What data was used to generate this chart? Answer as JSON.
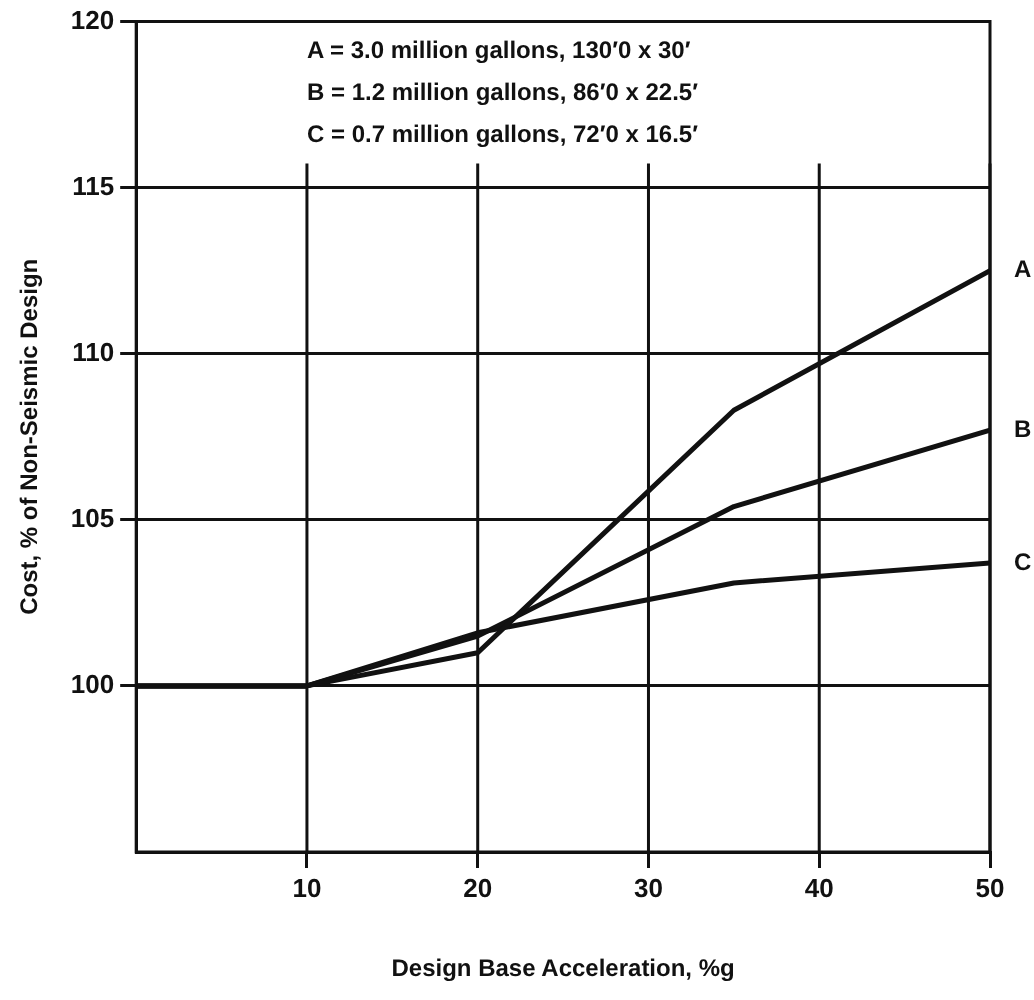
{
  "chart_data": {
    "type": "line",
    "xlabel": "Design Base Acceleration, %g",
    "ylabel": "Cost, % of Non-Seismic Design",
    "x": [
      0,
      10,
      20,
      35,
      50
    ],
    "series": [
      {
        "name": "A",
        "color": "#111111",
        "values": [
          100,
          100,
          101,
          108.3,
          112.5
        ]
      },
      {
        "name": "B",
        "color": "#111111",
        "values": [
          100,
          100,
          101.5,
          105.4,
          107.7
        ]
      },
      {
        "name": "C",
        "color": "#111111",
        "values": [
          100,
          100,
          101.6,
          103.1,
          103.7
        ]
      }
    ],
    "xlim": [
      0,
      50
    ],
    "xticks": [
      10,
      20,
      30,
      40,
      50
    ],
    "ylim": [
      95,
      120
    ],
    "yticks": [
      100,
      105,
      110,
      115,
      120
    ],
    "grid": true,
    "marker": "none",
    "line_style": "solid",
    "annotations": [
      "A = 3.0 million gallons, 130′0 x 30′",
      "B = 1.2 million gallons, 86′0 x 22.5′",
      "C = 0.7 million gallons, 72′0 x 16.5′"
    ]
  }
}
